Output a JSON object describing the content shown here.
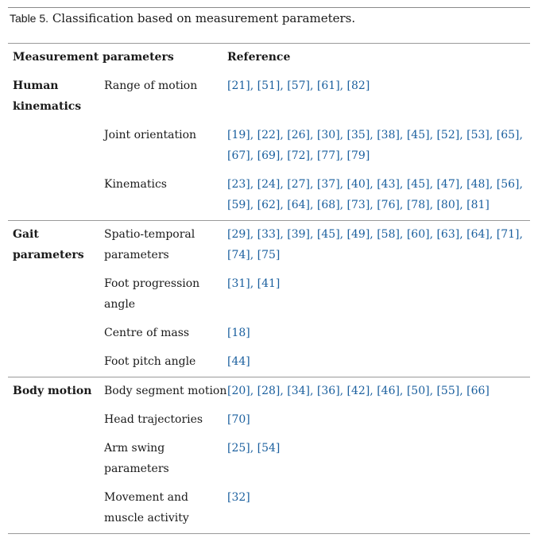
{
  "caption": {
    "label": "Table 5.",
    "title": "Classification based on measurement parameters."
  },
  "header": {
    "col1": "Measurement parameters",
    "col2": "Reference"
  },
  "groups": [
    {
      "name": "Human kinematics",
      "rows": [
        {
          "parameter": "Range of motion",
          "references": "[21], [51], [57], [61], [82]"
        },
        {
          "parameter": "Joint orientation",
          "references": "[19], [22], [26], [30], [35], [38], [45], [52], [53], [65], [67], [69], [72], [77], [79]"
        },
        {
          "parameter": "Kinematics",
          "references": "[23], [24], [27], [37], [40], [43], [45], [47], [48], [56], [59], [62], [64], [68], [73], [76], [78], [80], [81]"
        }
      ]
    },
    {
      "name": "Gait parameters",
      "rows": [
        {
          "parameter": "Spatio-temporal parameters",
          "references": "[29], [33], [39], [45], [49], [58], [60], [63], [64], [71], [74], [75]"
        },
        {
          "parameter": "Foot progression angle",
          "references": "[31], [41]"
        },
        {
          "parameter": "Centre of mass",
          "references": "[18]"
        },
        {
          "parameter": "Foot pitch angle",
          "references": "[44]"
        }
      ]
    },
    {
      "name": "Body motion",
      "rows": [
        {
          "parameter": "Body segment motion",
          "references": "[20], [28], [34], [36], [42], [46], [50], [55], [66]"
        },
        {
          "parameter": "Head trajectories",
          "references": "[70]"
        },
        {
          "parameter": "Arm swing parameters",
          "references": "[25], [54]"
        },
        {
          "parameter": "Movement and muscle activity",
          "references": "[32]"
        }
      ]
    }
  ]
}
